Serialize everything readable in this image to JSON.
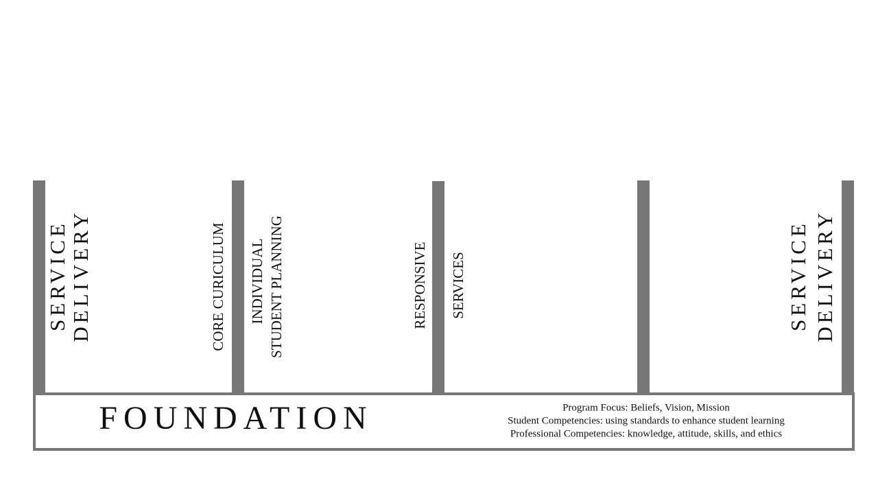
{
  "labels": [
    {
      "lines": [
        "SERVICE",
        "DELIVERY"
      ]
    },
    {
      "lines": [
        "CORE CURICULUM"
      ]
    },
    {
      "lines": [
        "INDIVIDUAL",
        "STUDENT PLANNING"
      ]
    },
    {
      "lines": [
        "RESPONSIVE"
      ]
    },
    {
      "lines": [
        "SERVICES"
      ]
    },
    {
      "lines": [
        "SERVICE",
        "DELIVERY"
      ]
    }
  ],
  "foundation": {
    "title": "FOUNDATION",
    "lines": [
      "Program Focus: Beliefs, Vision, Mission",
      "Student Competencies: using standards to enhance student learning",
      "Professional Competencies: knowledge, attitude, skills, and ethics"
    ]
  }
}
